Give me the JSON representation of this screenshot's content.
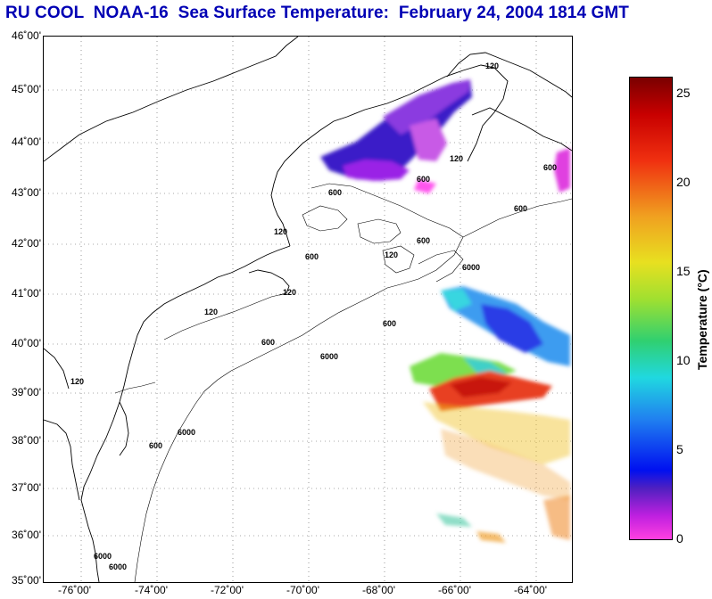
{
  "title": "RU COOL  NOAA-16  Sea Surface Temperature:  February 24, 2004 1814 GMT",
  "latitude_labels": [
    "46˚00'",
    "45˚00'",
    "44˚00'",
    "43˚00'",
    "42˚00'",
    "41˚00'",
    "40˚00'",
    "39˚00'",
    "38˚00'",
    "37˚00'",
    "36˚00'",
    "35˚00'"
  ],
  "longitude_labels": [
    "-76˚00'",
    "-74˚00'",
    "-72˚00'",
    "-70˚00'",
    "-68˚00'",
    "-66˚00'",
    "-64˚00'"
  ],
  "bathymetry_labels": [
    "120",
    "120",
    "120",
    "120",
    "120",
    "120",
    "120",
    "600",
    "600",
    "600",
    "600",
    "600",
    "600",
    "600",
    "600",
    "6000",
    "6000",
    "6000",
    "6000",
    "600",
    "6000"
  ],
  "colorbar": {
    "label": "Temperature (°C)",
    "ticks": [
      "25",
      "20",
      "15",
      "10",
      "5",
      "0"
    ],
    "min": 0,
    "max": 26
  },
  "colors": {
    "title": "#0000b4",
    "coast": "#000000"
  }
}
